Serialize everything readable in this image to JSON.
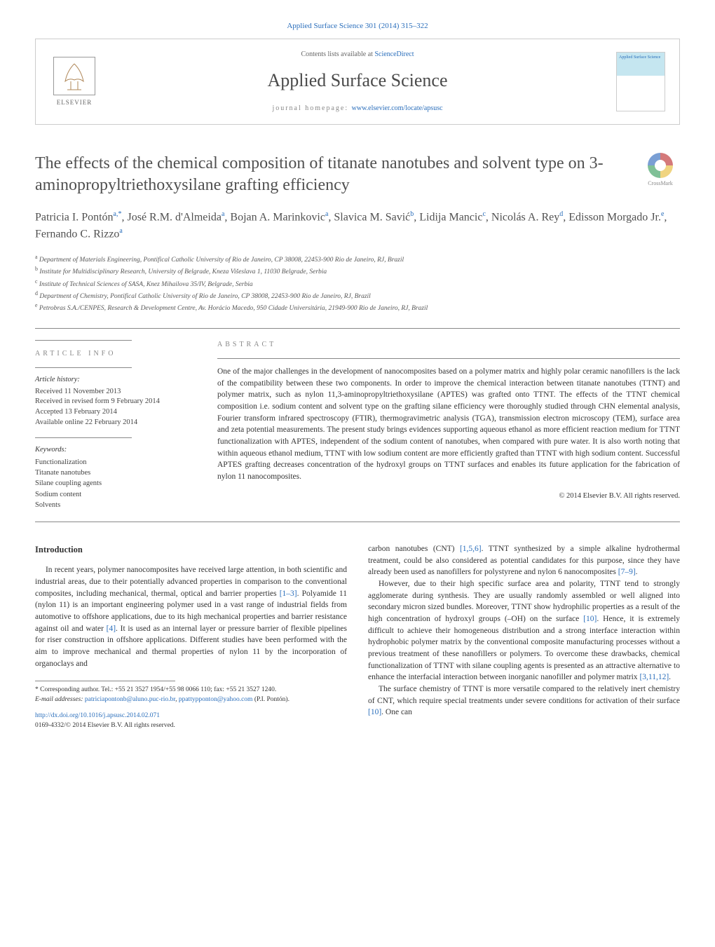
{
  "journal_ref": "Applied Surface Science 301 (2014) 315–322",
  "header": {
    "contents_prefix": "Contents lists available at ",
    "contents_link": "ScienceDirect",
    "journal_name": "Applied Surface Science",
    "homepage_prefix": "journal homepage: ",
    "homepage_url": "www.elsevier.com/locate/apsusc",
    "publisher": "ELSEVIER",
    "cover_text": "Applied Surface Science"
  },
  "crossmark": "CrossMark",
  "title": "The effects of the chemical composition of titanate nanotubes and solvent type on 3-aminopropyltriethoxysilane grafting efficiency",
  "authors_html": "Patricia I. Pontón<sup>a,*</sup>, José R.M. d'Almeida<sup>a</sup>, Bojan A. Marinkovic<sup>a</sup>, Slavica M. Savić<sup>b</sup>, Lidija Mancic<sup>c</sup>, Nicolás A. Rey<sup>d</sup>, Edisson Morgado Jr.<sup>e</sup>, Fernando C. Rizzo<sup>a</sup>",
  "affiliations": [
    {
      "sup": "a",
      "text": "Department of Materials Engineering, Pontifical Catholic University of Rio de Janeiro, CP 38008, 22453-900 Rio de Janeiro, RJ, Brazil"
    },
    {
      "sup": "b",
      "text": "Institute for Multidisciplinary Research, University of Belgrade, Kneza Višeslava 1, 11030 Belgrade, Serbia"
    },
    {
      "sup": "c",
      "text": "Institute of Technical Sciences of SASA, Knez Mihailova 35/IV, Belgrade, Serbia"
    },
    {
      "sup": "d",
      "text": "Department of Chemistry, Pontifical Catholic University of Rio de Janeiro, CP 38008, 22453-900 Rio de Janeiro, RJ, Brazil"
    },
    {
      "sup": "e",
      "text": "Petrobras S.A./CENPES, Research & Development Centre, Av. Horácio Macedo, 950 Cidade Universitária, 21949-900 Rio de Janeiro, RJ, Brazil"
    }
  ],
  "article_info": {
    "heading": "article info",
    "history_label": "Article history:",
    "history": [
      "Received 11 November 2013",
      "Received in revised form 9 February 2014",
      "Accepted 13 February 2014",
      "Available online 22 February 2014"
    ],
    "keywords_label": "Keywords:",
    "keywords": [
      "Functionalization",
      "Titanate nanotubes",
      "Silane coupling agents",
      "Sodium content",
      "Solvents"
    ]
  },
  "abstract": {
    "heading": "abstract",
    "text": "One of the major challenges in the development of nanocomposites based on a polymer matrix and highly polar ceramic nanofillers is the lack of the compatibility between these two components. In order to improve the chemical interaction between titanate nanotubes (TTNT) and polymer matrix, such as nylon 11,3-aminopropyltriethoxysilane (APTES) was grafted onto TTNT. The effects of the TTNT chemical composition i.e. sodium content and solvent type on the grafting silane efficiency were thoroughly studied through CHN elemental analysis, Fourier transform infrared spectroscopy (FTIR), thermogravimetric analysis (TGA), transmission electron microscopy (TEM), surface area and zeta potential measurements. The present study brings evidences supporting aqueous ethanol as more efficient reaction medium for TTNT functionalization with APTES, independent of the sodium content of nanotubes, when compared with pure water. It is also worth noting that within aqueous ethanol medium, TTNT with low sodium content are more efficiently grafted than TTNT with high sodium content. Successful APTES grafting decreases concentration of the hydroxyl groups on TTNT surfaces and enables its future application for the fabrication of nylon 11 nanocomposites.",
    "copyright": "© 2014 Elsevier B.V. All rights reserved."
  },
  "body": {
    "intro_heading": "Introduction",
    "p1": "In recent years, polymer nanocomposites have received large attention, in both scientific and industrial areas, due to their potentially advanced properties in comparison to the conventional composites, including mechanical, thermal, optical and barrier properties [1–3]. Polyamide 11 (nylon 11) is an important engineering polymer used in a vast range of industrial fields from automotive to offshore applications, due to its high mechanical properties and barrier resistance against oil and water [4]. It is used as an internal layer or pressure barrier of flexible pipelines for riser construction in offshore applications. Different studies have been performed with the aim to improve mechanical and thermal properties of nylon 11 by the incorporation of organoclays and",
    "p2": "carbon nanotubes (CNT) [1,5,6]. TTNT synthesized by a simple alkaline hydrothermal treatment, could be also considered as potential candidates for this purpose, since they have already been used as nanofillers for polystyrene and nylon 6 nanocomposites [7–9].",
    "p3": "However, due to their high specific surface area and polarity, TTNT tend to strongly agglomerate during synthesis. They are usually randomly assembled or well aligned into secondary micron sized bundles. Moreover, TTNT show hydrophilic properties as a result of the high concentration of hydroxyl groups (–OH) on the surface [10]. Hence, it is extremely difficult to achieve their homogeneous distribution and a strong interface interaction within hydrophobic polymer matrix by the conventional composite manufacturing processes without a previous treatment of these nanofillers or polymers. To overcome these drawbacks, chemical functionalization of TTNT with silane coupling agents is presented as an attractive alternative to enhance the interfacial interaction between inorganic nanofiller and polymer matrix [3,11,12].",
    "p4": "The surface chemistry of TTNT is more versatile compared to the relatively inert chemistry of CNT, which require special treatments under severe conditions for activation of their surface [10]. One can"
  },
  "footnotes": {
    "corresp": "* Corresponding author. Tel.: +55 21 3527 1954/+55 98 0066 110; fax: +55 21 3527 1240.",
    "email_label": "E-mail addresses: ",
    "email1": "patriciapontonb@aluno.puc-rio.br",
    "email2": "ppattypponton@yahoo.com",
    "email_suffix": " (P.I. Pontón)."
  },
  "doi": {
    "url": "http://dx.doi.org/10.1016/j.apsusc.2014.02.071",
    "issn_line": "0169-4332/© 2014 Elsevier B.V. All rights reserved."
  },
  "refs": {
    "r1_3": "[1–3]",
    "r4": "[4]",
    "r156": "[1,5,6]",
    "r7_9": "[7–9]",
    "r10a": "[10]",
    "r31112": "[3,11,12]",
    "r10b": "[10]"
  },
  "colors": {
    "link": "#2a6ebb",
    "text": "#333333",
    "heading": "#505050"
  }
}
